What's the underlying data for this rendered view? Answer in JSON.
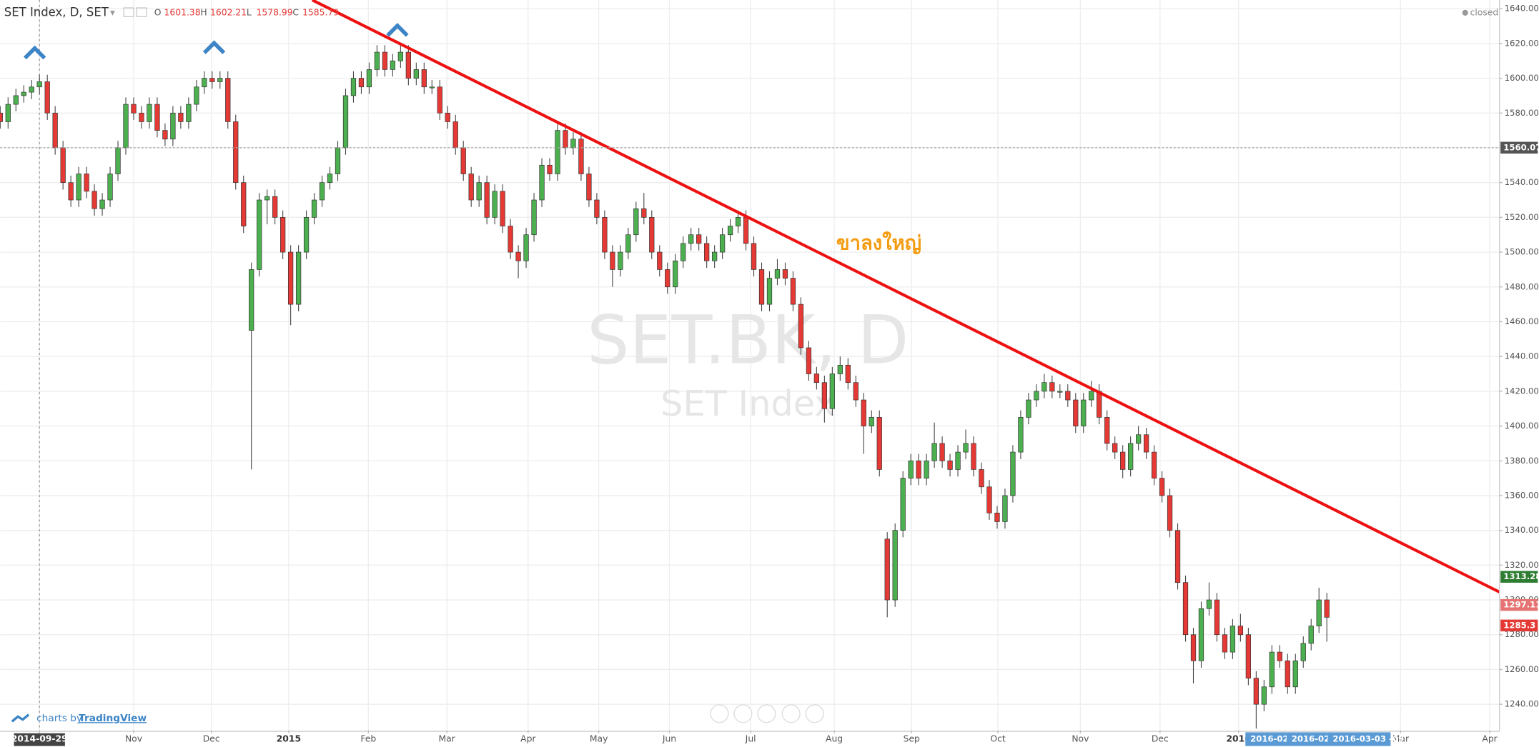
{
  "chart_data": {
    "type": "candlestick",
    "title": "SET Index, D, SET",
    "ohlc_legend": [
      {
        "label": "O",
        "value": 1601.38
      },
      {
        "label": "H",
        "value": 1602.21
      },
      {
        "label": "L",
        "value": 1578.99
      },
      {
        "label": "C",
        "value": 1585.79
      }
    ],
    "status": "closed",
    "watermark": "SET.BK, D",
    "watermark_subtitle": "SET Index",
    "annotation": "ขาลงใหญ่",
    "annotation_color": "#f39c12",
    "credit": "charts by",
    "credit_brand": "TradingView",
    "date_badges": [
      "2016-02-",
      "2016-02-1",
      "2016-03-03 -09"
    ],
    "up_color": "#4caf50",
    "down_color": "#e53935",
    "grid": true,
    "xlim": [
      0,
      191
    ],
    "ylim": [
      1225,
      1645
    ],
    "xticks": [
      {
        "value": 5,
        "label": "2014-09-29"
      },
      {
        "value": 17,
        "label": "Nov"
      },
      {
        "value": 26.9,
        "label": "Dec"
      },
      {
        "value": 36.75,
        "label": "2015"
      },
      {
        "value": 46.9,
        "label": "Feb"
      },
      {
        "value": 56.9,
        "label": "Mar"
      },
      {
        "value": 67.25,
        "label": "Apr"
      },
      {
        "value": 76.25,
        "label": "May"
      },
      {
        "value": 85.25,
        "label": "Jun"
      },
      {
        "value": 95.6,
        "label": "Jul"
      },
      {
        "value": 106.25,
        "label": "Aug"
      },
      {
        "value": 116.1,
        "label": "Sep"
      },
      {
        "value": 127.1,
        "label": "Oct"
      },
      {
        "value": 137.6,
        "label": "Nov"
      },
      {
        "value": 147.75,
        "label": "Dec"
      },
      {
        "value": 157.75,
        "label": "2016"
      },
      {
        "value": 178.4,
        "label": "Mar"
      },
      {
        "value": 189.75,
        "label": "Apr"
      }
    ],
    "yticks": [
      {
        "value": 1240,
        "label": "1240.00"
      },
      {
        "value": 1260,
        "label": "1260.00"
      },
      {
        "value": 1280,
        "label": "1280.00"
      },
      {
        "value": 1300,
        "label": "1300.00"
      },
      {
        "value": 1320,
        "label": "1320.00"
      },
      {
        "value": 1340,
        "label": "1340.00"
      },
      {
        "value": 1360,
        "label": "1360.00"
      },
      {
        "value": 1380,
        "label": "1380.00"
      },
      {
        "value": 1400,
        "label": "1400.00"
      },
      {
        "value": 1420,
        "label": "1420.00"
      },
      {
        "value": 1440,
        "label": "1440.00"
      },
      {
        "value": 1460,
        "label": "1460.00"
      },
      {
        "value": 1480,
        "label": "1480.00"
      },
      {
        "value": 1500,
        "label": "1500.00"
      },
      {
        "value": 1520,
        "label": "1520.00"
      },
      {
        "value": 1540,
        "label": "1540.00"
      },
      {
        "value": 1560,
        "label": "1560.00"
      },
      {
        "value": 1580,
        "label": "1580.00"
      },
      {
        "value": 1600,
        "label": "1600.00"
      },
      {
        "value": 1620,
        "label": "1620.00"
      },
      {
        "value": 1640,
        "label": "1640.00"
      }
    ],
    "price_labels": [
      {
        "value": 1560.07,
        "color": "#555555"
      },
      {
        "value": 1313.28,
        "color": "#2e7d32"
      },
      {
        "value": 1297.11,
        "color": "#e57373"
      },
      {
        "value": 1285.3,
        "color": "#e53935"
      }
    ],
    "trendline": {
      "color": "#ee1111",
      "x": [
        39.75,
        191
      ],
      "y": [
        1645,
        1304.5
      ]
    },
    "markers": {
      "color": "#3d85c6",
      "x": [
        4.4,
        27.25,
        50.6
      ],
      "y": [
        1615,
        1618,
        1628
      ]
    },
    "candles": [
      [
        1580,
        1584,
        1571,
        1575
      ],
      [
        1575,
        1589,
        1571,
        1585
      ],
      [
        1585,
        1594,
        1581,
        1590
      ],
      [
        1590,
        1596,
        1586,
        1592
      ],
      [
        1592,
        1599,
        1588,
        1595
      ],
      [
        1595,
        1602,
        1591,
        1598
      ],
      [
        1598,
        1602,
        1576,
        1580
      ],
      [
        1580,
        1584,
        1556,
        1560
      ],
      [
        1560,
        1564,
        1536,
        1540
      ],
      [
        1540,
        1544,
        1526,
        1530
      ],
      [
        1530,
        1549,
        1526,
        1545
      ],
      [
        1545,
        1549,
        1531,
        1535
      ],
      [
        1535,
        1539,
        1521,
        1525
      ],
      [
        1525,
        1534,
        1521,
        1530
      ],
      [
        1530,
        1549,
        1526,
        1545
      ],
      [
        1545,
        1564,
        1541,
        1560
      ],
      [
        1560,
        1589,
        1556,
        1585
      ],
      [
        1585,
        1589,
        1576,
        1580
      ],
      [
        1580,
        1584,
        1571,
        1575
      ],
      [
        1575,
        1589,
        1571,
        1585
      ],
      [
        1585,
        1589,
        1566,
        1570
      ],
      [
        1570,
        1574,
        1561,
        1565
      ],
      [
        1565,
        1584,
        1561,
        1580
      ],
      [
        1580,
        1584,
        1571,
        1575
      ],
      [
        1575,
        1589,
        1571,
        1585
      ],
      [
        1585,
        1599,
        1581,
        1595
      ],
      [
        1595,
        1604,
        1591,
        1600
      ],
      [
        1600,
        1604,
        1594,
        1598
      ],
      [
        1598,
        1604,
        1594,
        1600
      ],
      [
        1600,
        1604,
        1571,
        1575
      ],
      [
        1575,
        1579,
        1536,
        1540
      ],
      [
        1540,
        1544,
        1511,
        1515
      ],
      [
        1455,
        1494,
        1375,
        1490
      ],
      [
        1490,
        1534,
        1486,
        1530
      ],
      [
        1530,
        1536,
        1516,
        1532
      ],
      [
        1532,
        1536,
        1516,
        1520
      ],
      [
        1520,
        1524,
        1496,
        1500
      ],
      [
        1500,
        1504,
        1458,
        1470
      ],
      [
        1470,
        1504,
        1466,
        1500
      ],
      [
        1500,
        1524,
        1496,
        1520
      ],
      [
        1520,
        1534,
        1516,
        1530
      ],
      [
        1530,
        1544,
        1526,
        1540
      ],
      [
        1540,
        1549,
        1536,
        1545
      ],
      [
        1545,
        1564,
        1541,
        1560
      ],
      [
        1560,
        1594,
        1556,
        1590
      ],
      [
        1590,
        1604,
        1586,
        1600
      ],
      [
        1600,
        1604,
        1591,
        1595
      ],
      [
        1595,
        1609,
        1591,
        1605
      ],
      [
        1605,
        1619,
        1601,
        1615
      ],
      [
        1615,
        1619,
        1601,
        1605
      ],
      [
        1605,
        1614,
        1601,
        1610
      ],
      [
        1610,
        1619,
        1606,
        1615
      ],
      [
        1615,
        1619,
        1596,
        1600
      ],
      [
        1600,
        1609,
        1596,
        1605
      ],
      [
        1605,
        1609,
        1591,
        1595
      ],
      [
        1595,
        1599,
        1591,
        1595
      ],
      [
        1595,
        1599,
        1576,
        1580
      ],
      [
        1580,
        1584,
        1571,
        1575
      ],
      [
        1575,
        1579,
        1556,
        1560
      ],
      [
        1560,
        1564,
        1541,
        1545
      ],
      [
        1545,
        1549,
        1526,
        1530
      ],
      [
        1530,
        1544,
        1526,
        1540
      ],
      [
        1540,
        1544,
        1516,
        1520
      ],
      [
        1520,
        1539,
        1516,
        1535
      ],
      [
        1535,
        1539,
        1511,
        1515
      ],
      [
        1515,
        1519,
        1496,
        1500
      ],
      [
        1500,
        1504,
        1485,
        1495
      ],
      [
        1495,
        1514,
        1491,
        1510
      ],
      [
        1510,
        1534,
        1506,
        1530
      ],
      [
        1530,
        1554,
        1526,
        1550
      ],
      [
        1550,
        1554,
        1541,
        1545
      ],
      [
        1545,
        1574,
        1541,
        1570
      ],
      [
        1570,
        1574,
        1556,
        1560
      ],
      [
        1560,
        1569,
        1556,
        1565
      ],
      [
        1565,
        1569,
        1541,
        1545
      ],
      [
        1545,
        1549,
        1526,
        1530
      ],
      [
        1530,
        1534,
        1516,
        1520
      ],
      [
        1520,
        1524,
        1496,
        1500
      ],
      [
        1500,
        1504,
        1480,
        1490
      ],
      [
        1490,
        1504,
        1486,
        1500
      ],
      [
        1500,
        1514,
        1496,
        1510
      ],
      [
        1510,
        1529,
        1506,
        1525
      ],
      [
        1525,
        1534,
        1516,
        1520
      ],
      [
        1520,
        1524,
        1496,
        1500
      ],
      [
        1500,
        1504,
        1486,
        1490
      ],
      [
        1490,
        1494,
        1476,
        1480
      ],
      [
        1480,
        1499,
        1476,
        1495
      ],
      [
        1495,
        1509,
        1491,
        1505
      ],
      [
        1505,
        1514,
        1501,
        1510
      ],
      [
        1510,
        1514,
        1501,
        1505
      ],
      [
        1505,
        1509,
        1491,
        1495
      ],
      [
        1495,
        1504,
        1491,
        1500
      ],
      [
        1500,
        1514,
        1496,
        1510
      ],
      [
        1510,
        1519,
        1506,
        1515
      ],
      [
        1515,
        1524,
        1511,
        1520
      ],
      [
        1520,
        1524,
        1501,
        1505
      ],
      [
        1505,
        1509,
        1486,
        1490
      ],
      [
        1490,
        1494,
        1466,
        1470
      ],
      [
        1470,
        1489,
        1466,
        1485
      ],
      [
        1485,
        1496,
        1481,
        1490
      ],
      [
        1490,
        1494,
        1481,
        1485
      ],
      [
        1485,
        1489,
        1466,
        1470
      ],
      [
        1470,
        1474,
        1441,
        1445
      ],
      [
        1445,
        1449,
        1426,
        1430
      ],
      [
        1430,
        1434,
        1421,
        1425
      ],
      [
        1425,
        1429,
        1402,
        1410
      ],
      [
        1410,
        1434,
        1406,
        1430
      ],
      [
        1430,
        1440,
        1426,
        1435
      ],
      [
        1435,
        1439,
        1421,
        1425
      ],
      [
        1425,
        1429,
        1411,
        1415
      ],
      [
        1415,
        1419,
        1384,
        1400
      ],
      [
        1400,
        1409,
        1396,
        1405
      ],
      [
        1405,
        1409,
        1371,
        1375
      ],
      [
        1335,
        1339,
        1290,
        1300
      ],
      [
        1300,
        1344,
        1296,
        1340
      ],
      [
        1340,
        1374,
        1336,
        1370
      ],
      [
        1370,
        1384,
        1366,
        1380
      ],
      [
        1380,
        1384,
        1366,
        1370
      ],
      [
        1370,
        1384,
        1366,
        1380
      ],
      [
        1380,
        1402,
        1376,
        1390
      ],
      [
        1390,
        1394,
        1376,
        1380
      ],
      [
        1380,
        1384,
        1371,
        1375
      ],
      [
        1375,
        1389,
        1371,
        1385
      ],
      [
        1385,
        1398,
        1381,
        1390
      ],
      [
        1390,
        1394,
        1371,
        1375
      ],
      [
        1375,
        1379,
        1361,
        1365
      ],
      [
        1365,
        1369,
        1346,
        1350
      ],
      [
        1350,
        1354,
        1341,
        1345
      ],
      [
        1345,
        1364,
        1341,
        1360
      ],
      [
        1360,
        1389,
        1356,
        1385
      ],
      [
        1385,
        1409,
        1381,
        1405
      ],
      [
        1405,
        1419,
        1401,
        1415
      ],
      [
        1415,
        1424,
        1411,
        1420
      ],
      [
        1420,
        1430,
        1416,
        1425
      ],
      [
        1425,
        1429,
        1416,
        1420
      ],
      [
        1420,
        1424,
        1416,
        1420
      ],
      [
        1420,
        1424,
        1411,
        1415
      ],
      [
        1415,
        1419,
        1396,
        1400
      ],
      [
        1400,
        1419,
        1396,
        1415
      ],
      [
        1415,
        1426,
        1411,
        1420
      ],
      [
        1420,
        1424,
        1401,
        1405
      ],
      [
        1405,
        1409,
        1386,
        1390
      ],
      [
        1390,
        1394,
        1381,
        1385
      ],
      [
        1385,
        1389,
        1370,
        1375
      ],
      [
        1375,
        1394,
        1371,
        1390
      ],
      [
        1390,
        1400,
        1386,
        1395
      ],
      [
        1395,
        1399,
        1381,
        1385
      ],
      [
        1385,
        1389,
        1366,
        1370
      ],
      [
        1370,
        1374,
        1356,
        1360
      ],
      [
        1360,
        1364,
        1336,
        1340
      ],
      [
        1340,
        1344,
        1306,
        1310
      ],
      [
        1310,
        1314,
        1276,
        1280
      ],
      [
        1280,
        1284,
        1252,
        1265
      ],
      [
        1265,
        1299,
        1261,
        1295
      ],
      [
        1295,
        1310,
        1291,
        1300
      ],
      [
        1300,
        1304,
        1276,
        1280
      ],
      [
        1280,
        1284,
        1266,
        1270
      ],
      [
        1270,
        1289,
        1266,
        1285
      ],
      [
        1285,
        1292,
        1276,
        1280
      ],
      [
        1280,
        1284,
        1251,
        1255
      ],
      [
        1255,
        1259,
        1226,
        1240
      ],
      [
        1240,
        1254,
        1236,
        1250
      ],
      [
        1250,
        1274,
        1246,
        1270
      ],
      [
        1270,
        1274,
        1261,
        1265
      ],
      [
        1265,
        1269,
        1246,
        1250
      ],
      [
        1250,
        1269,
        1246,
        1265
      ],
      [
        1265,
        1279,
        1261,
        1275
      ],
      [
        1275,
        1289,
        1271,
        1285
      ],
      [
        1285,
        1307,
        1281,
        1300
      ],
      [
        1300,
        1304,
        1276,
        1290
      ]
    ]
  }
}
